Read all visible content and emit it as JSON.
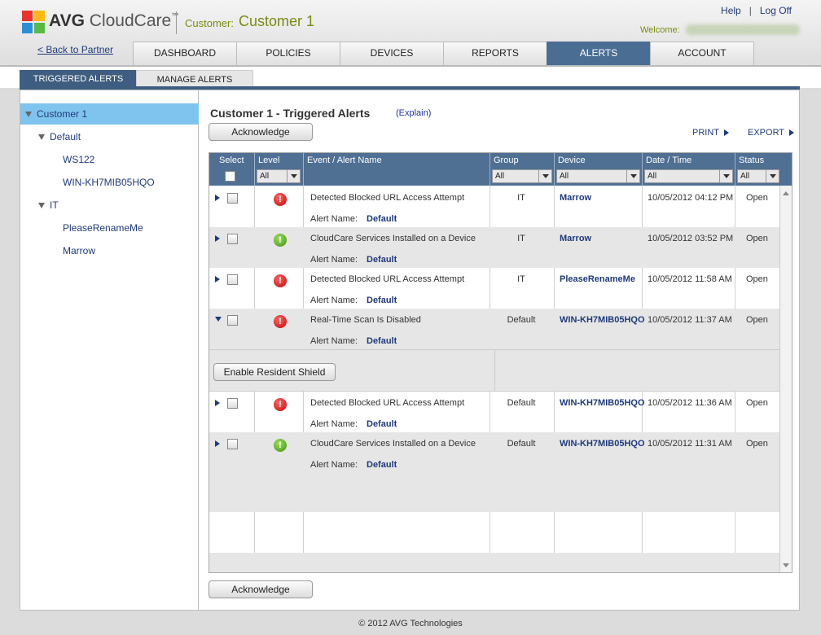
{
  "header": {
    "logo_bold": "AVG",
    "logo_text": "CloudCare",
    "logo_tm": "™",
    "customer_label": "Customer:",
    "customer_name": "Customer 1",
    "help": "Help",
    "separator": "|",
    "logoff": "Log Off",
    "welcome": "Welcome:",
    "back_link": "< Back to Partner"
  },
  "nav": {
    "tabs": [
      "DASHBOARD",
      "POLICIES",
      "DEVICES",
      "REPORTS",
      "ALERTS",
      "ACCOUNT"
    ],
    "active": "ALERTS"
  },
  "subnav": {
    "triggered": "TRIGGERED ALERTS",
    "manage": "MANAGE ALERTS"
  },
  "sidebar": {
    "items": [
      "Customer 1",
      "Default",
      "WS122",
      "WIN-KH7MIB05HQO",
      "IT",
      "PleaseRenameMe",
      "Marrow"
    ]
  },
  "content": {
    "title": "Customer 1 - Triggered Alerts",
    "explain": "(Explain)",
    "acknowledge": "Acknowledge",
    "print": "PRINT",
    "export": "EXPORT"
  },
  "grid": {
    "headers": {
      "select": "Select",
      "level": "Level",
      "event": "Event / Alert Name",
      "group": "Group",
      "device": "Device",
      "datetime": "Date / Time",
      "status": "Status"
    },
    "filter_all": "All",
    "alert_name_label": "Alert Name:",
    "action_button": "Enable Resident Shield",
    "rows": [
      {
        "event": "Detected Blocked URL Access Attempt",
        "alert_name": "Default",
        "group": "IT",
        "device": "Marrow",
        "datetime": "10/05/2012 04:12 PM",
        "status": "Open",
        "level": "!"
      },
      {
        "event": "CloudCare Services Installed on a Device",
        "alert_name": "Default",
        "group": "IT",
        "device": "Marrow",
        "datetime": "10/05/2012 03:52 PM",
        "status": "Open",
        "level": "!"
      },
      {
        "event": "Detected Blocked URL Access Attempt",
        "alert_name": "Default",
        "group": "IT",
        "device": "PleaseRenameMe",
        "datetime": "10/05/2012 11:58 AM",
        "status": "Open",
        "level": "!"
      },
      {
        "event": "Real-Time Scan Is Disabled",
        "alert_name": "Default",
        "group": "Default",
        "device": "WIN-KH7MIB05HQO",
        "datetime": "10/05/2012 11:37 AM",
        "status": "Open",
        "level": "!"
      },
      {
        "event": "Detected Blocked URL Access Attempt",
        "alert_name": "Default",
        "group": "Default",
        "device": "WIN-KH7MIB05HQO",
        "datetime": "10/05/2012 11:36 AM",
        "status": "Open",
        "level": "!"
      },
      {
        "event": "CloudCare Services Installed on a Device",
        "alert_name": "Default",
        "group": "Default",
        "device": "WIN-KH7MIB05HQO",
        "datetime": "10/05/2012 11:31 AM",
        "status": "Open",
        "level": "!"
      }
    ]
  },
  "footer": "© 2012 AVG Technologies",
  "colors": {
    "accent": "#4a6d94",
    "link": "#1f3a7a",
    "customer": "#7a8a10",
    "alert_red": "#c40000",
    "alert_green": "#3f8f10"
  }
}
